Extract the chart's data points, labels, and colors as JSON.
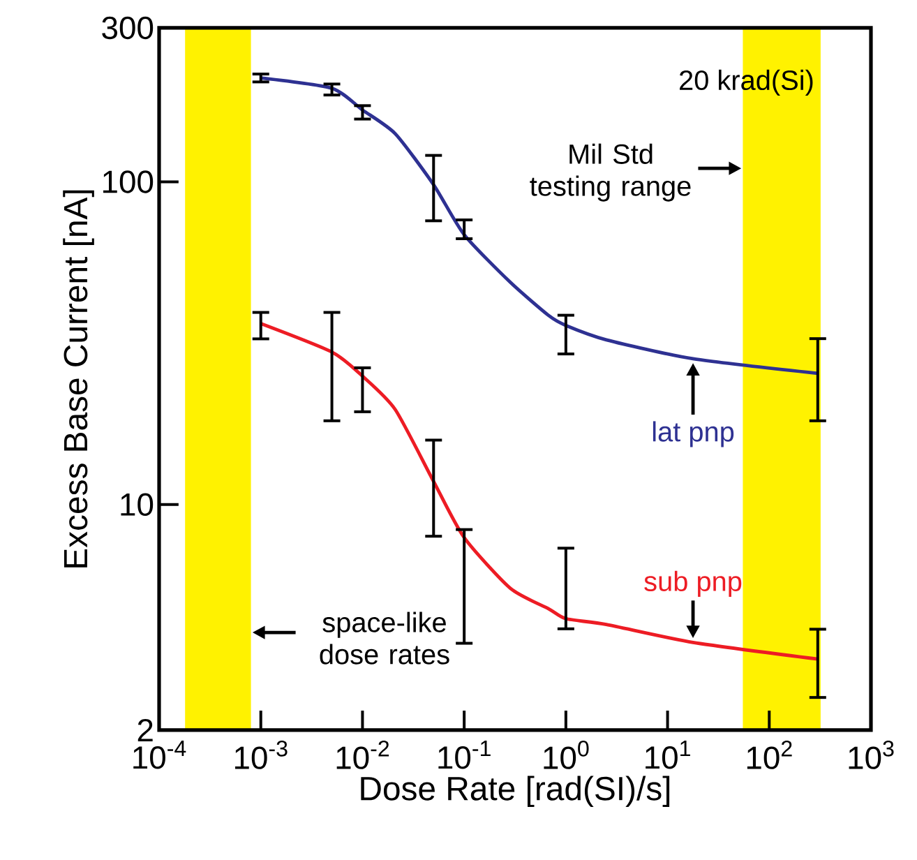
{
  "chart_data": {
    "type": "line",
    "xlabel": "Dose Rate [rad(SI)/s]",
    "ylabel": "Excess Base Current [nA]",
    "log": "xy",
    "marker": "none",
    "line_style": "solid",
    "xlim": [
      0.0001,
      1000
    ],
    "ylim": [
      2,
      300
    ],
    "xticks": [
      {
        "value": 0.0001,
        "label": "10$^{-4}$"
      },
      {
        "value": 0.001,
        "label": "10$^{-3}$"
      },
      {
        "value": 0.01,
        "label": "10$^{-2}$"
      },
      {
        "value": 0.1,
        "label": "10$^{-1}$"
      },
      {
        "value": 1,
        "label": "10$^{0}$"
      },
      {
        "value": 10,
        "label": "10$^{1}$"
      },
      {
        "value": 100,
        "label": "10$^{2}$"
      },
      {
        "value": 1000,
        "label": "10$^{3}$"
      }
    ],
    "yticks": [
      2,
      10,
      100,
      300
    ],
    "series": [
      {
        "name": "lat pnp",
        "color": "#2e3192",
        "x": [
          0.001,
          0.005,
          0.01,
          0.021,
          0.05,
          0.1,
          0.285,
          0.68,
          1,
          2.5,
          17.8,
          300
        ],
        "values": [
          210,
          195,
          167,
          141,
          98,
          68.6,
          48.8,
          38.5,
          35.9,
          32.4,
          28.3,
          25.5
        ],
        "errors": [
          [
            202,
            218
          ],
          [
            184,
            203
          ],
          [
            155,
            174
          ],
          null,
          [
            75,
            122
          ],
          [
            66,
            77
          ],
          null,
          null,
          [
            29,
            39
          ],
          null,
          null,
          [
            18,
            33
          ]
        ]
      },
      {
        "name": "sub pnp",
        "color": "#ed1c24",
        "x": [
          0.001,
          0.005,
          0.01,
          0.021,
          0.05,
          0.1,
          0.285,
          0.68,
          1,
          2.5,
          17.8,
          300
        ],
        "values": [
          36.4,
          29.7,
          25,
          19.7,
          11.8,
          7.9,
          5.5,
          4.75,
          4.43,
          4.25,
          3.74,
          3.32
        ],
        "errors": [
          [
            32.3,
            39.8
          ],
          [
            18,
            39.8
          ],
          [
            19.2,
            26.8
          ],
          null,
          [
            7.9,
            16
          ],
          [
            3.68,
            8.45
          ],
          null,
          null,
          [
            4.08,
            7.4
          ],
          null,
          null,
          [
            2.5,
            4.15
          ]
        ]
      }
    ],
    "bands": [
      {
        "axis": "x",
        "from": 0.00018,
        "to": 0.0008,
        "label": "space-like dose rates",
        "color": "#fff200"
      },
      {
        "axis": "x",
        "from": 55,
        "to": 320,
        "label": "Mil Std testing range",
        "color": "#fff200"
      }
    ],
    "annotations": [
      "20 krad(Si)"
    ]
  }
}
